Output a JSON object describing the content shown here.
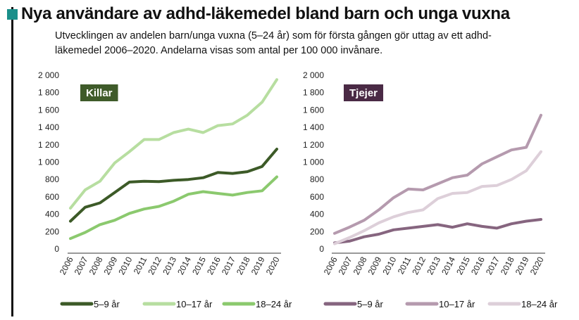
{
  "title": "Nya användare av adhd-läkemedel bland barn och unga vuxna",
  "subtitle": "Utvecklingen av andelen barn/unga vuxna (5–24 år) som för första gången gör uttag av ett adhd-läkemedel 2006–2020. Andelarna visas som antal per 100 000 invånare.",
  "chart_data": [
    {
      "type": "line",
      "badge": "Killar",
      "badge_color": "#3f5b2a",
      "categories": [
        "2006",
        "2007",
        "2008",
        "2009",
        "2010",
        "2011",
        "2012",
        "2013",
        "2014",
        "2015",
        "2016",
        "2017",
        "2018",
        "2019",
        "2020"
      ],
      "ylim": [
        0,
        2000
      ],
      "yticks": [
        0,
        200,
        400,
        600,
        800,
        1000,
        1200,
        1400,
        1600,
        1800,
        2000
      ],
      "ytick_labels": [
        "0",
        "200",
        "400",
        "600",
        "800",
        "1 000",
        "1 200",
        "1 400",
        "1 600",
        "1 800",
        "2 000"
      ],
      "series": [
        {
          "name": "5–9 år",
          "color": "#3c5a27",
          "values": [
            320,
            480,
            530,
            650,
            770,
            780,
            775,
            790,
            800,
            820,
            880,
            870,
            890,
            950,
            1150
          ]
        },
        {
          "name": "10–17 år",
          "color": "#b7dea0",
          "values": [
            470,
            680,
            780,
            990,
            1120,
            1260,
            1260,
            1340,
            1380,
            1340,
            1420,
            1440,
            1540,
            1690,
            1950
          ]
        },
        {
          "name": "18–24 år",
          "color": "#8bc96e",
          "values": [
            120,
            190,
            280,
            330,
            410,
            460,
            490,
            550,
            630,
            660,
            640,
            620,
            650,
            670,
            830
          ]
        }
      ]
    },
    {
      "type": "line",
      "badge": "Tjejer",
      "badge_color": "#4a2a45",
      "categories": [
        "2006",
        "2007",
        "2008",
        "2009",
        "2010",
        "2011",
        "2012",
        "2013",
        "2014",
        "2015",
        "2016",
        "2017",
        "2018",
        "2019",
        "2020"
      ],
      "ylim": [
        0,
        2000
      ],
      "yticks": [
        0,
        200,
        400,
        600,
        800,
        1000,
        1200,
        1400,
        1600,
        1800,
        2000
      ],
      "ytick_labels": [
        "0",
        "200",
        "400",
        "600",
        "800",
        "1 000",
        "1 200",
        "1 400",
        "1 600",
        "1 800",
        "2 000"
      ],
      "series": [
        {
          "name": "5–9 år",
          "color": "#86657f",
          "values": [
            70,
            90,
            140,
            170,
            220,
            240,
            260,
            280,
            250,
            290,
            260,
            240,
            290,
            320,
            340
          ]
        },
        {
          "name": "10–17 år",
          "color": "#b59aae",
          "values": [
            180,
            250,
            330,
            450,
            590,
            690,
            680,
            750,
            820,
            850,
            980,
            1060,
            1140,
            1170,
            1540
          ]
        },
        {
          "name": "18–24 år",
          "color": "#ddcfd9",
          "values": [
            60,
            130,
            210,
            300,
            370,
            420,
            450,
            580,
            640,
            650,
            720,
            730,
            800,
            900,
            1120
          ]
        }
      ]
    }
  ]
}
